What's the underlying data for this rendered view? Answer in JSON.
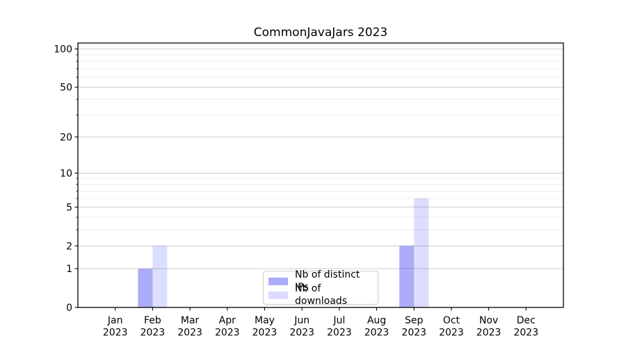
{
  "figure": {
    "background": "#ffffff"
  },
  "chart_data": {
    "type": "bar",
    "title": "CommonJavaJars 2023",
    "x": {
      "months": [
        "Jan",
        "Feb",
        "Mar",
        "Apr",
        "May",
        "Jun",
        "Jul",
        "Aug",
        "Sep",
        "Oct",
        "Nov",
        "Dec"
      ],
      "year": "2023"
    },
    "series": [
      {
        "name": "Nb of distinct IPs",
        "color_hex": "#1919f0",
        "alpha": 0.36,
        "values": [
          0,
          1,
          0,
          0,
          0,
          0,
          0,
          0,
          2,
          0,
          0,
          0
        ]
      },
      {
        "name": "Nb of downloads",
        "color_hex": "#1919f0",
        "alpha": 0.15,
        "values": [
          0,
          2,
          0,
          0,
          0,
          0,
          0,
          0,
          6,
          0,
          0,
          0
        ]
      }
    ],
    "y_axis": {
      "scale": "log1p",
      "tick_values": [
        0,
        1,
        2,
        5,
        10,
        20,
        50,
        100
      ],
      "minor_gridline_values": [
        3,
        4,
        6,
        7,
        8,
        9,
        30,
        40,
        60,
        70,
        80,
        90
      ],
      "ylim": [
        0,
        110
      ]
    },
    "grid": {
      "major_color": "#cccccc",
      "minor_color": "#ececec"
    },
    "axis_color": "#000000",
    "text_color": "#000000",
    "legend": {
      "position": "lower center"
    }
  }
}
